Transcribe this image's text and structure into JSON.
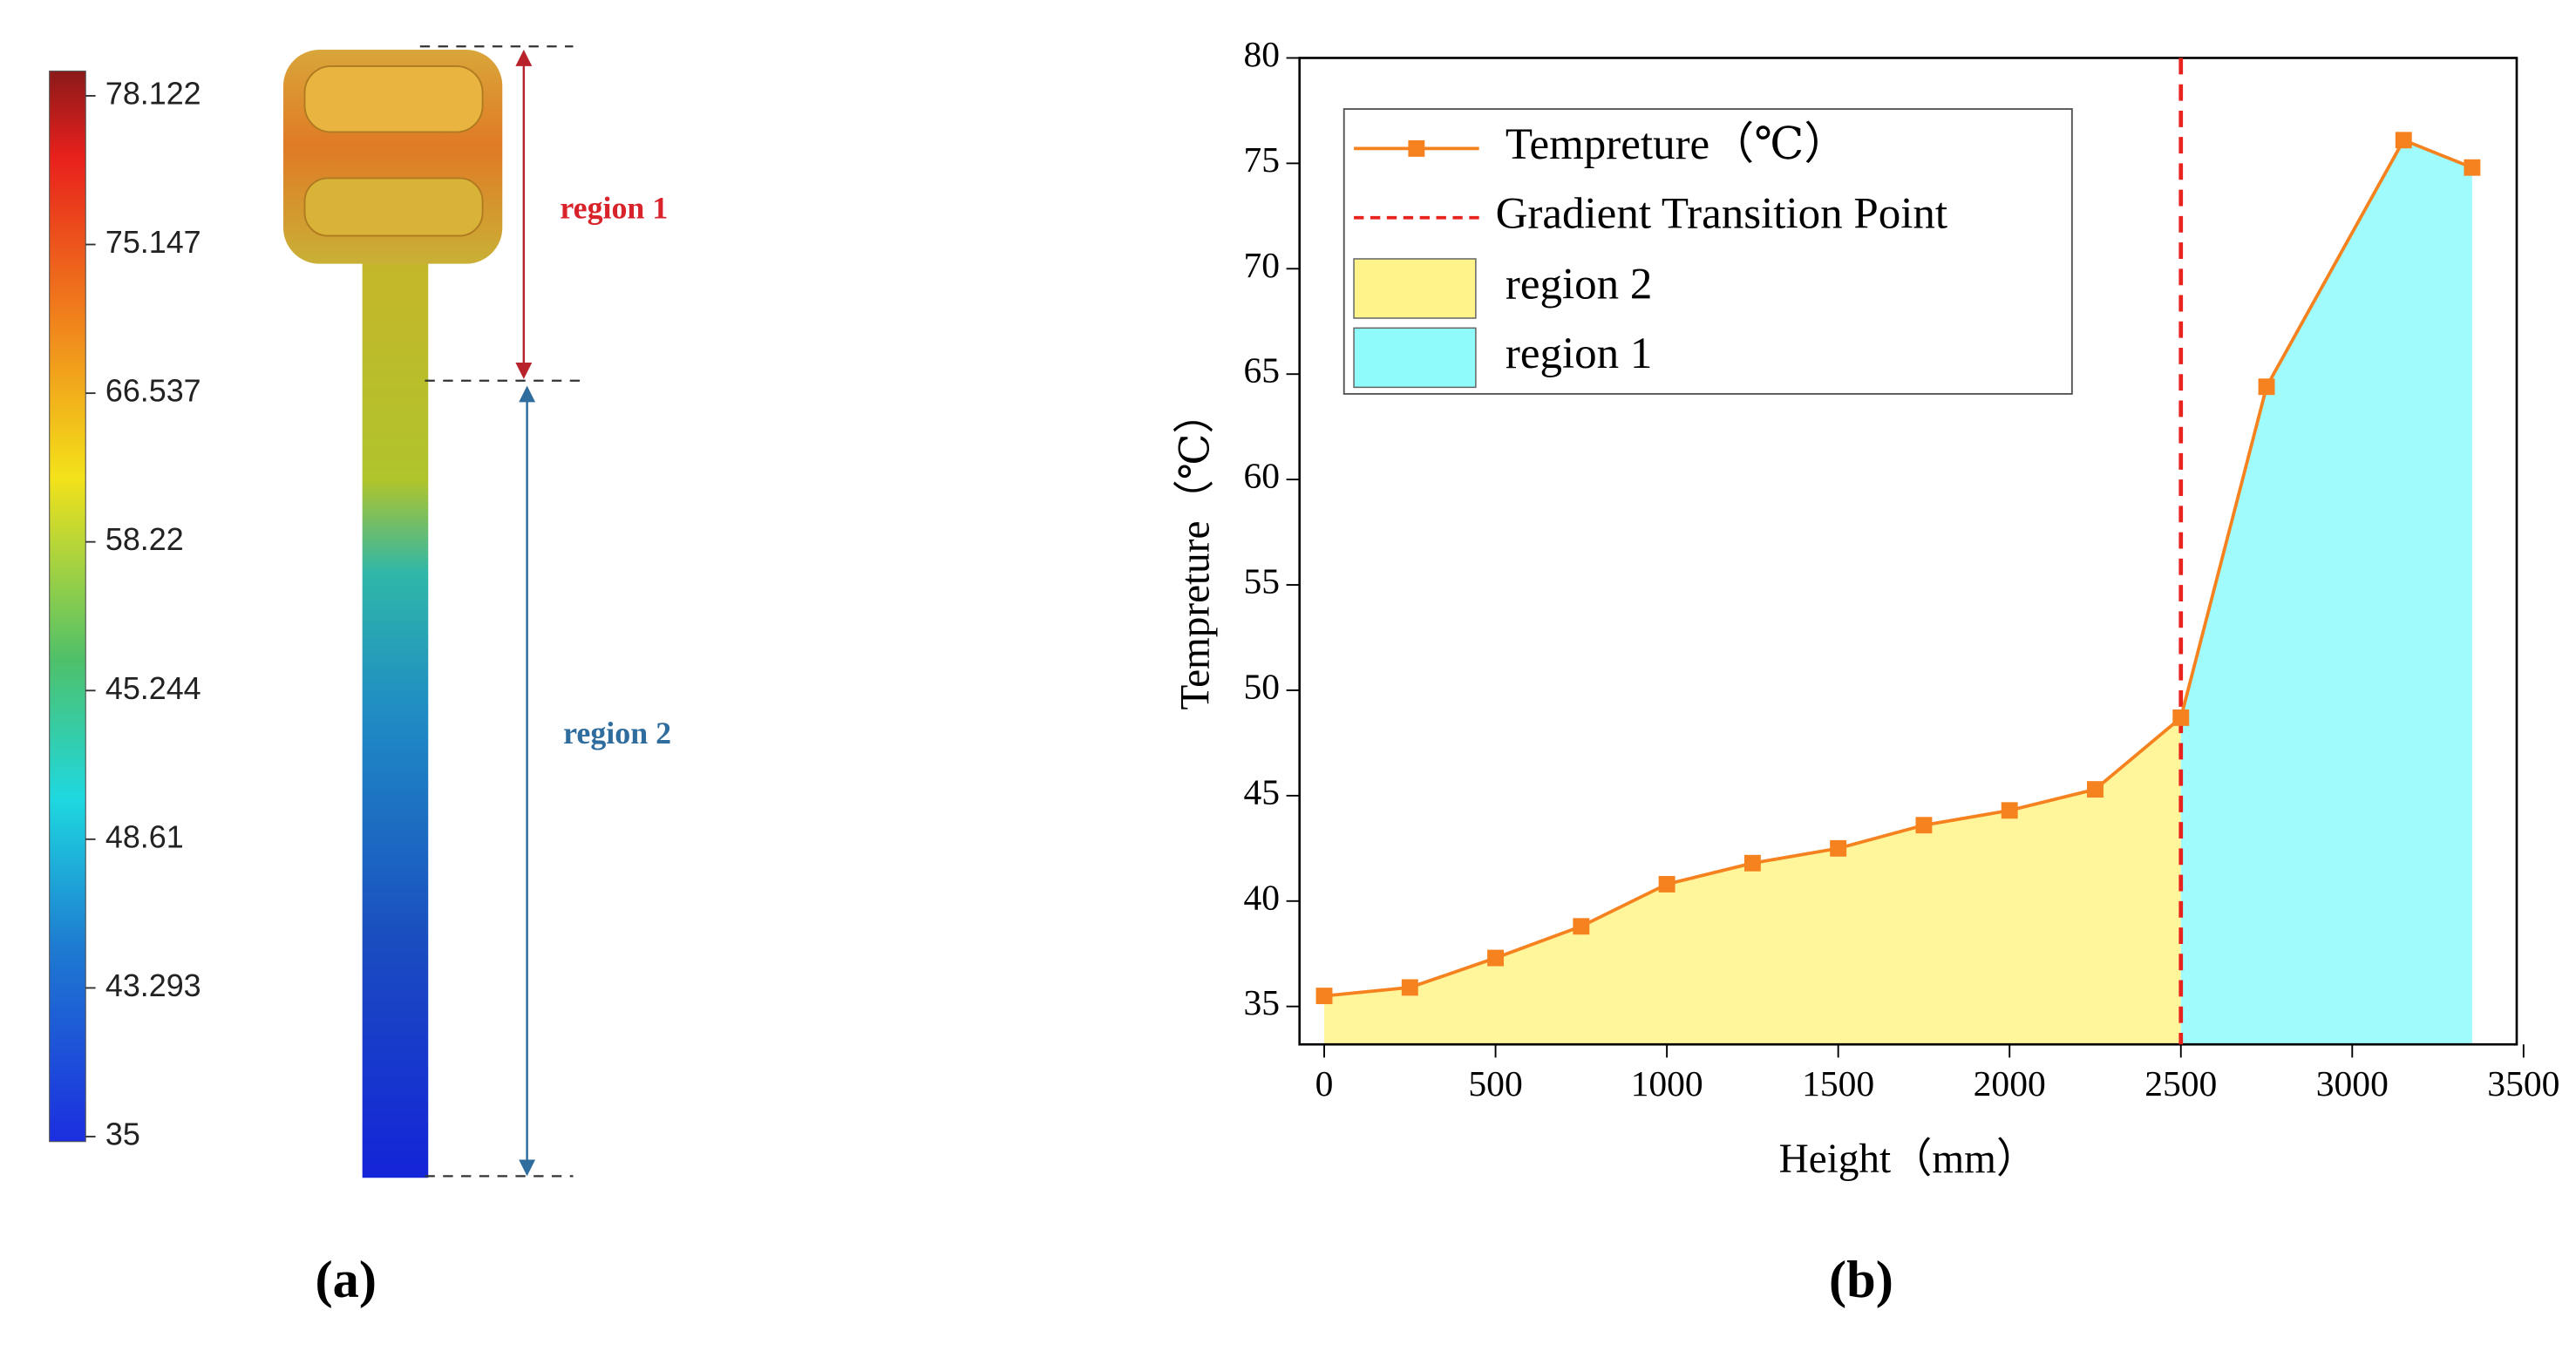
{
  "chart_data": [
    {
      "type": "colorbar",
      "label": "(a)",
      "ticks": [
        {
          "value": 78.122,
          "label": "78.122"
        },
        {
          "value": 75.147,
          "label": "75.147"
        },
        {
          "value": 66.537,
          "label": "66.537"
        },
        {
          "value": 58.22,
          "label": "58.22"
        },
        {
          "value": 45.244,
          "label": "45.244"
        },
        {
          "value": 48.61,
          "label": "48.61"
        },
        {
          "value": 43.293,
          "label": "43.293"
        },
        35
      ],
      "annotations": [
        {
          "text": "region 1",
          "color": "#d9232b"
        },
        {
          "text": "region 2",
          "color": "#2f6d9e"
        }
      ]
    },
    {
      "type": "line",
      "label": "(b)",
      "xlabel": "Height（mm）",
      "ylabel": "Tempreture（℃）",
      "x": [
        0,
        250,
        500,
        750,
        1000,
        1250,
        1500,
        1750,
        2000,
        2250,
        2500,
        2750,
        3150,
        3350
      ],
      "series": [
        {
          "name": "Tempreture（℃）",
          "color": "#f5821f",
          "values": [
            35.5,
            35.9,
            37.3,
            38.8,
            40.8,
            41.8,
            42.5,
            43.6,
            44.3,
            45.3,
            48.7,
            64.4,
            76.1,
            74.8
          ]
        }
      ],
      "transition": {
        "name": "Gradient Transition Point",
        "x": 2500,
        "color": "#e8221c"
      },
      "regions": [
        {
          "name": "region 2",
          "color": "#fff38a",
          "x": [
            0,
            2500
          ]
        },
        {
          "name": "region 1",
          "color": "#8ffbfb",
          "x": [
            2500,
            3350
          ]
        }
      ],
      "xlim": [
        -72,
        3480
      ],
      "ylim": [
        33.2,
        80
      ],
      "xticks": [
        0,
        500,
        1000,
        1500,
        2000,
        2500,
        3000,
        3500
      ],
      "yticks": [
        35,
        40,
        45,
        50,
        55,
        60,
        65,
        70,
        75,
        80
      ],
      "legend": "upper left"
    }
  ]
}
